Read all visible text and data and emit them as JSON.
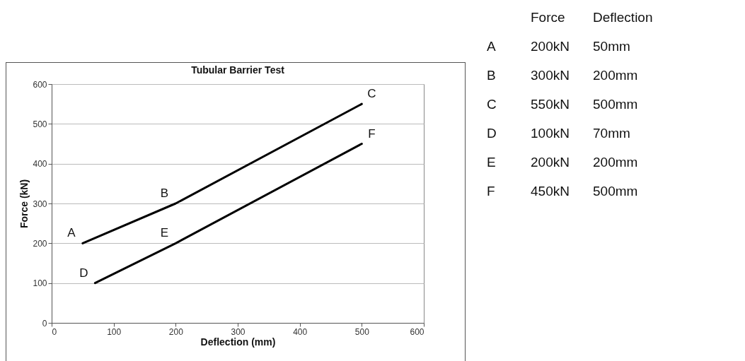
{
  "chart_data": {
    "type": "line",
    "title": "Tubular Barrier Test",
    "xlabel": "Deflection (mm)",
    "ylabel": "Force (kN)",
    "series": [
      {
        "color": "#000000",
        "x": [
          50,
          200,
          500
        ],
        "values": [
          200,
          300,
          550
        ]
      },
      {
        "color": "#000000",
        "x": [
          70,
          200,
          500
        ],
        "values": [
          100,
          200,
          450
        ]
      }
    ],
    "xlim": [
      0,
      600
    ],
    "xticks": [
      0,
      100,
      200,
      300,
      400,
      500,
      600
    ],
    "ylim": [
      0,
      600
    ],
    "yticks": [
      0,
      100,
      200,
      300,
      400,
      500,
      600
    ],
    "grid": "y",
    "annotations": [
      {
        "text": "A",
        "x": 50,
        "y": 200
      },
      {
        "text": "B",
        "x": 200,
        "y": 300
      },
      {
        "text": "C",
        "x": 500,
        "y": 550
      },
      {
        "text": "D",
        "x": 70,
        "y": 100
      },
      {
        "text": "E",
        "x": 200,
        "y": 200
      },
      {
        "text": "F",
        "x": 500,
        "y": 450
      },
      "Force",
      "Deflection",
      "A",
      "200kN",
      "50mm",
      "B",
      "300kN",
      "200mm",
      "C",
      "550kN",
      "500mm",
      "D",
      "100kN",
      "70mm",
      "E",
      "200kN",
      "200mm",
      "F",
      "450kN",
      "500mm"
    ]
  }
}
